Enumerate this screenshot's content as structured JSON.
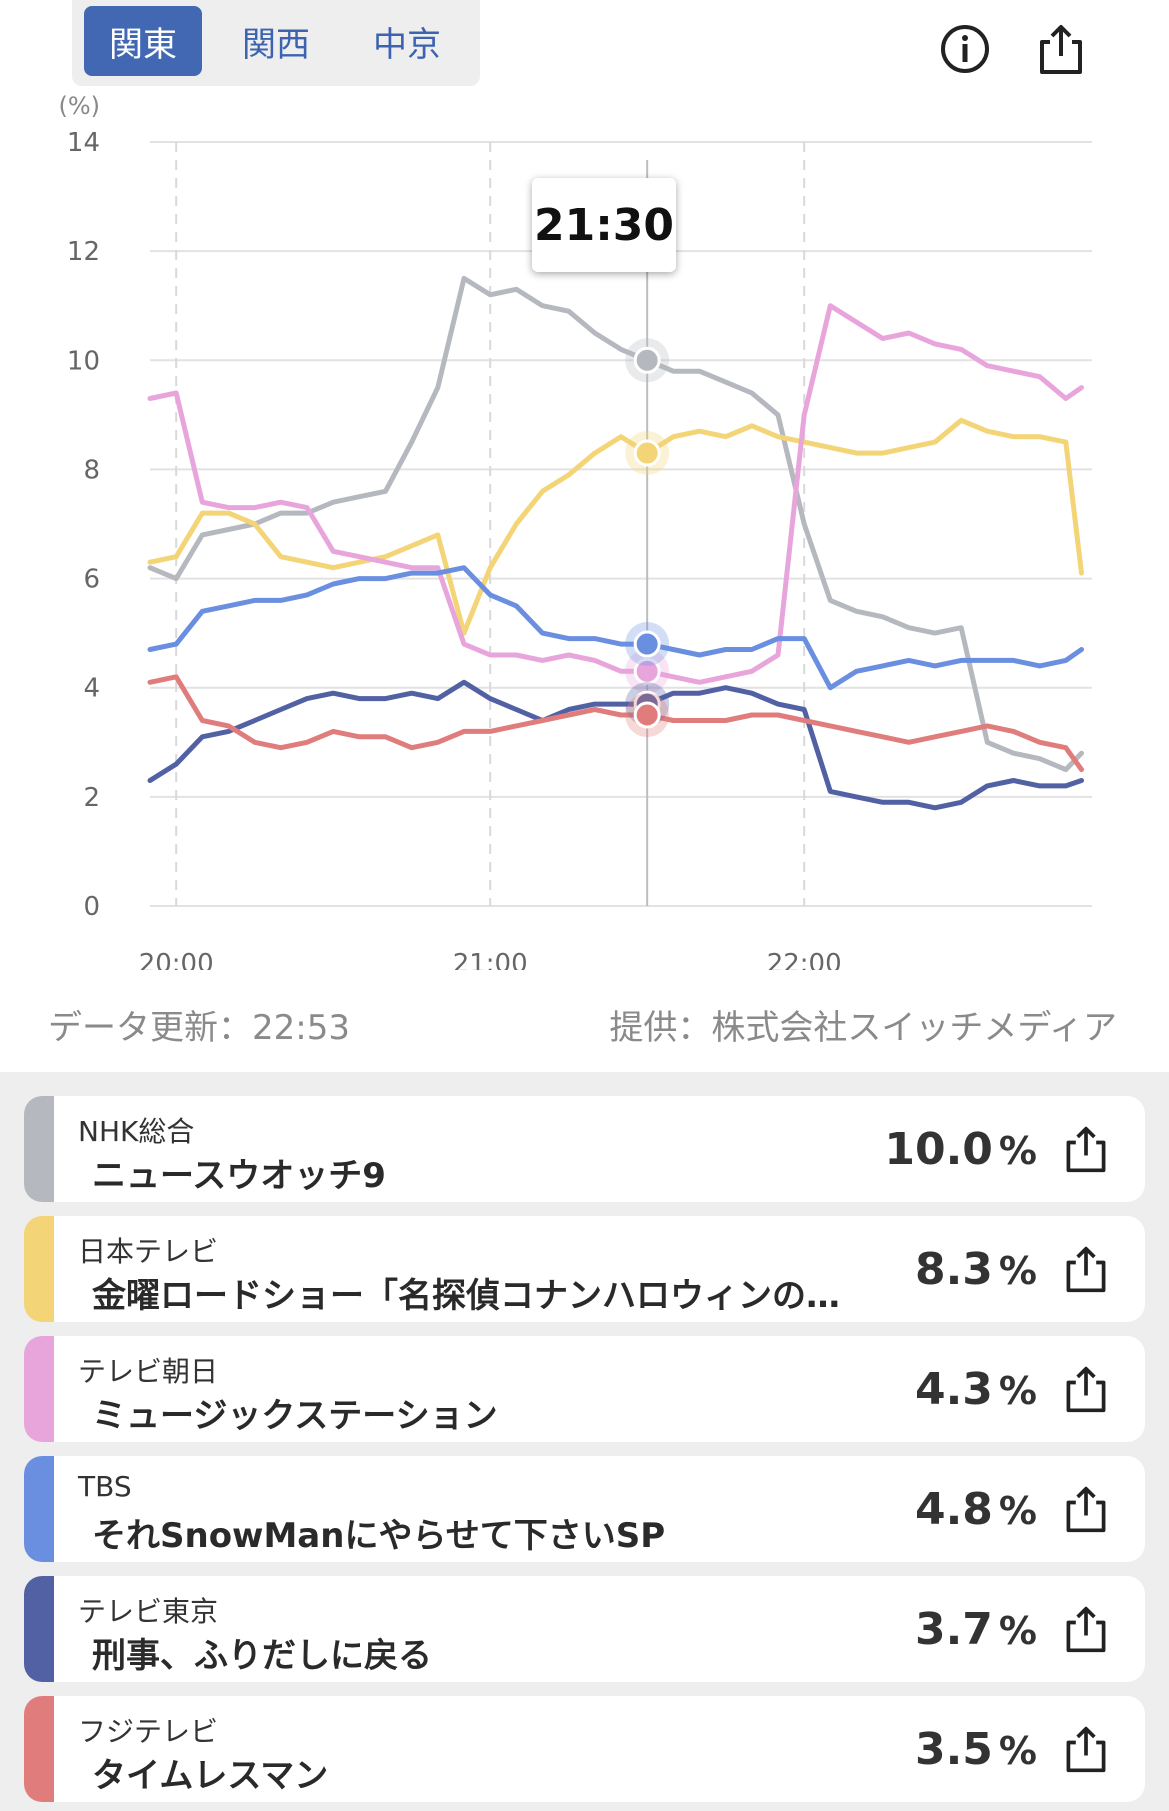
{
  "region_tabs": {
    "items": [
      {
        "label": "関東",
        "active": true
      },
      {
        "label": "関西",
        "active": false
      },
      {
        "label": "中京",
        "active": false
      }
    ]
  },
  "icons": {
    "info": "info-icon",
    "share": "share-icon"
  },
  "tooltip": {
    "time": "21:30"
  },
  "footer": {
    "updated": "データ更新：22:53",
    "provider": "提供：株式会社スイッチメディア"
  },
  "chart_data": {
    "type": "line",
    "ylabel": "(%)",
    "ylim": [
      0,
      14
    ],
    "yticks": [
      0,
      2,
      4,
      6,
      8,
      10,
      12,
      14
    ],
    "xlim": [
      "19:55",
      "22:55"
    ],
    "xticks": [
      "20:00",
      "21:00",
      "22:00"
    ],
    "crosshair": "21:30",
    "grid": true,
    "x": [
      "19:55",
      "20:00",
      "20:05",
      "20:10",
      "20:15",
      "20:20",
      "20:25",
      "20:30",
      "20:35",
      "20:40",
      "20:45",
      "20:50",
      "20:55",
      "21:00",
      "21:05",
      "21:10",
      "21:15",
      "21:20",
      "21:25",
      "21:30",
      "21:35",
      "21:40",
      "21:45",
      "21:50",
      "21:55",
      "22:00",
      "22:05",
      "22:10",
      "22:15",
      "22:20",
      "22:25",
      "22:30",
      "22:35",
      "22:40",
      "22:45",
      "22:50",
      "22:53"
    ],
    "series": [
      {
        "color": "#b5b9bf",
        "values": [
          6.2,
          6.0,
          6.8,
          6.9,
          7.0,
          7.2,
          7.2,
          7.4,
          7.5,
          7.6,
          8.5,
          9.5,
          11.5,
          11.2,
          11.3,
          11.0,
          10.9,
          10.5,
          10.2,
          10.0,
          9.8,
          9.8,
          9.6,
          9.4,
          9.0,
          7.0,
          5.6,
          5.4,
          5.3,
          5.1,
          5.0,
          5.1,
          3.0,
          2.8,
          2.7,
          2.5,
          2.8
        ]
      },
      {
        "color": "#f3d477",
        "values": [
          6.3,
          6.4,
          7.2,
          7.2,
          7.0,
          6.4,
          6.3,
          6.2,
          6.3,
          6.4,
          6.6,
          6.8,
          5.0,
          6.2,
          7.0,
          7.6,
          7.9,
          8.3,
          8.6,
          8.3,
          8.6,
          8.7,
          8.6,
          8.8,
          8.6,
          8.5,
          8.4,
          8.3,
          8.3,
          8.4,
          8.5,
          8.9,
          8.7,
          8.6,
          8.6,
          8.5,
          6.1
        ]
      },
      {
        "color": "#e8a5dc",
        "values": [
          9.3,
          9.4,
          7.4,
          7.3,
          7.3,
          7.4,
          7.3,
          6.5,
          6.4,
          6.3,
          6.2,
          6.2,
          4.8,
          4.6,
          4.6,
          4.5,
          4.6,
          4.5,
          4.3,
          4.3,
          4.2,
          4.1,
          4.2,
          4.3,
          4.6,
          9.0,
          11.0,
          10.7,
          10.4,
          10.5,
          10.3,
          10.2,
          9.9,
          9.8,
          9.7,
          9.3,
          9.5
        ]
      },
      {
        "color": "#6a8fe0",
        "values": [
          4.7,
          4.8,
          5.4,
          5.5,
          5.6,
          5.6,
          5.7,
          5.9,
          6.0,
          6.0,
          6.1,
          6.1,
          6.2,
          5.7,
          5.5,
          5.0,
          4.9,
          4.9,
          4.8,
          4.8,
          4.7,
          4.6,
          4.7,
          4.7,
          4.9,
          4.9,
          4.0,
          4.3,
          4.4,
          4.5,
          4.4,
          4.5,
          4.5,
          4.5,
          4.4,
          4.5,
          4.7
        ]
      },
      {
        "color": "#5161a3",
        "values": [
          2.3,
          2.6,
          3.1,
          3.2,
          3.4,
          3.6,
          3.8,
          3.9,
          3.8,
          3.8,
          3.9,
          3.8,
          4.1,
          3.8,
          3.6,
          3.4,
          3.6,
          3.7,
          3.7,
          3.7,
          3.9,
          3.9,
          4.0,
          3.9,
          3.7,
          3.6,
          2.1,
          2.0,
          1.9,
          1.9,
          1.8,
          1.9,
          2.2,
          2.3,
          2.2,
          2.2,
          2.3
        ]
      },
      {
        "color": "#e07d7c",
        "values": [
          4.1,
          4.2,
          3.4,
          3.3,
          3.0,
          2.9,
          3.0,
          3.2,
          3.1,
          3.1,
          2.9,
          3.0,
          3.2,
          3.2,
          3.3,
          3.4,
          3.5,
          3.6,
          3.5,
          3.5,
          3.4,
          3.4,
          3.4,
          3.5,
          3.5,
          3.4,
          3.3,
          3.2,
          3.1,
          3.0,
          3.1,
          3.2,
          3.3,
          3.2,
          3.0,
          2.9,
          2.5
        ]
      }
    ]
  },
  "channels": [
    {
      "channel": "NHK総合",
      "program": "ニュースウオッチ9",
      "rating": "10.0",
      "unit": "%",
      "color": "#b5b9bf"
    },
    {
      "channel": "日本テレビ",
      "program": "金曜ロードショー「名探偵コナンハロウィンの…",
      "rating": "8.3",
      "unit": "%",
      "color": "#f3d477"
    },
    {
      "channel": "テレビ朝日",
      "program": "ミュージックステーション",
      "rating": "4.3",
      "unit": "%",
      "color": "#e8a5dc"
    },
    {
      "channel": "TBS",
      "program": "それSnowManにやらせて下さいSP",
      "rating": "4.8",
      "unit": "%",
      "color": "#6a8fe0"
    },
    {
      "channel": "テレビ東京",
      "program": "刑事、ふりだしに戻る",
      "rating": "3.7",
      "unit": "%",
      "color": "#5161a3"
    },
    {
      "channel": "フジテレビ",
      "program": "タイムレスマン",
      "rating": "3.5",
      "unit": "%",
      "color": "#e07d7c"
    }
  ]
}
